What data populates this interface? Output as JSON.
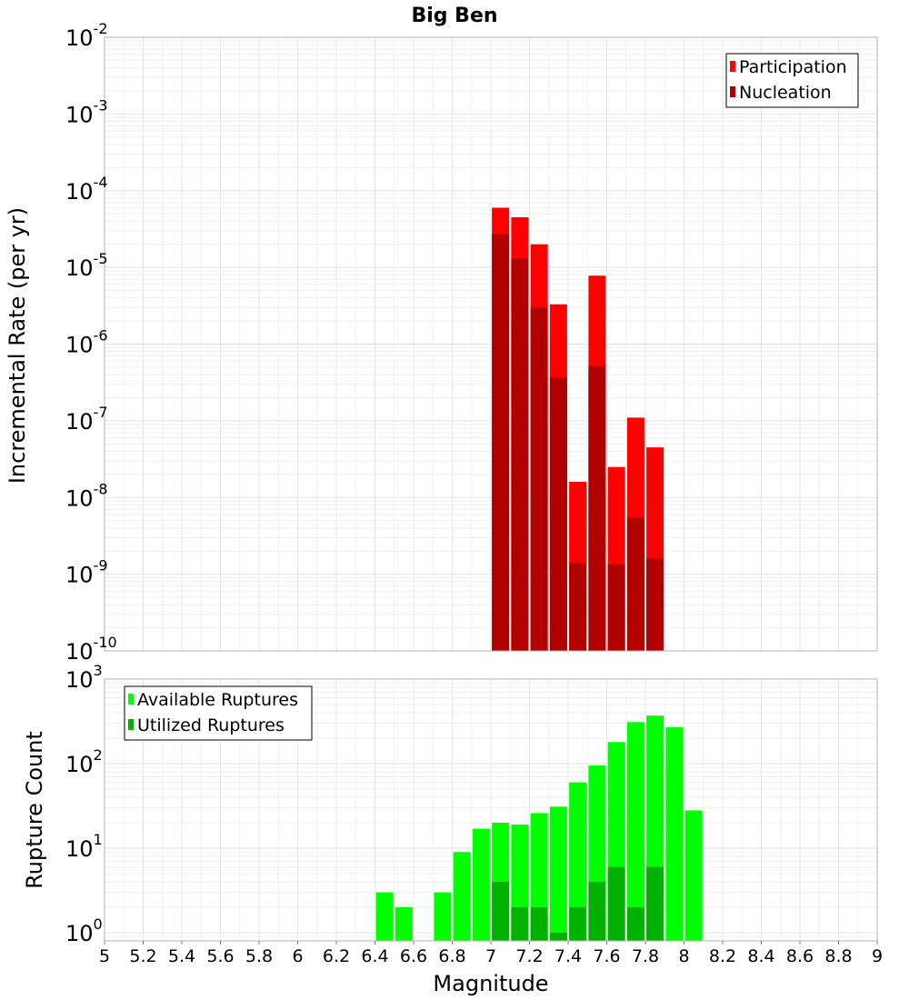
{
  "chart_data": [
    {
      "type": "bar",
      "title": "Big Ben",
      "xlabel": "",
      "ylabel": "Incremental Rate (per yr)",
      "yscale": "log",
      "ylim": [
        1e-10,
        0.01
      ],
      "xlim": [
        5,
        9
      ],
      "legend_position": "top-right",
      "grid": true,
      "x": [
        7.05,
        7.15,
        7.25,
        7.35,
        7.45,
        7.55,
        7.65,
        7.75,
        7.85
      ],
      "series": [
        {
          "name": "Participation",
          "color": "#ff0000",
          "values": [
            6e-05,
            4.5e-05,
            2e-05,
            3.3e-06,
            1.6e-08,
            7.8e-06,
            2.5e-08,
            1.1e-07,
            4.5e-08
          ]
        },
        {
          "name": "Nucleation",
          "color": "#b20000",
          "values": [
            2.7e-05,
            1.3e-05,
            3e-06,
            3.7e-07,
            1.4e-09,
            5.2e-07,
            1.35e-09,
            5.5e-09,
            1.6e-09
          ]
        }
      ],
      "ytick_exponents": [
        -10,
        -9,
        -8,
        -7,
        -6,
        -5,
        -4,
        -3,
        -2
      ]
    },
    {
      "type": "bar",
      "xlabel": "Magnitude",
      "ylabel": "Rupture Count",
      "yscale": "log",
      "ylim": [
        0.8,
        1000
      ],
      "xlim": [
        5,
        9
      ],
      "legend_position": "top-left",
      "grid": true,
      "x": [
        6.45,
        6.55,
        6.75,
        6.85,
        6.95,
        7.05,
        7.15,
        7.25,
        7.35,
        7.45,
        7.55,
        7.65,
        7.75,
        7.85,
        7.95,
        8.05
      ],
      "series": [
        {
          "name": "Available Ruptures",
          "color": "#00ff00",
          "values": [
            3,
            2,
            3,
            9,
            17,
            20,
            19,
            26,
            31,
            60,
            95,
            180,
            310,
            370,
            270,
            28
          ]
        },
        {
          "name": "Utilized Ruptures",
          "color": "#00b200",
          "values": [
            0,
            0,
            0,
            0,
            0,
            4,
            2,
            2,
            1,
            2,
            4,
            6,
            2,
            6,
            0,
            0
          ]
        }
      ],
      "ytick_exponents": [
        0,
        1,
        2,
        3
      ]
    }
  ],
  "x_ticks": [
    "5",
    "5.2",
    "5.4",
    "5.6",
    "5.8",
    "6",
    "6.2",
    "6.4",
    "6.6",
    "6.8",
    "7",
    "7.2",
    "7.4",
    "7.6",
    "7.8",
    "8",
    "8.2",
    "8.4",
    "8.6",
    "8.8",
    "9"
  ]
}
